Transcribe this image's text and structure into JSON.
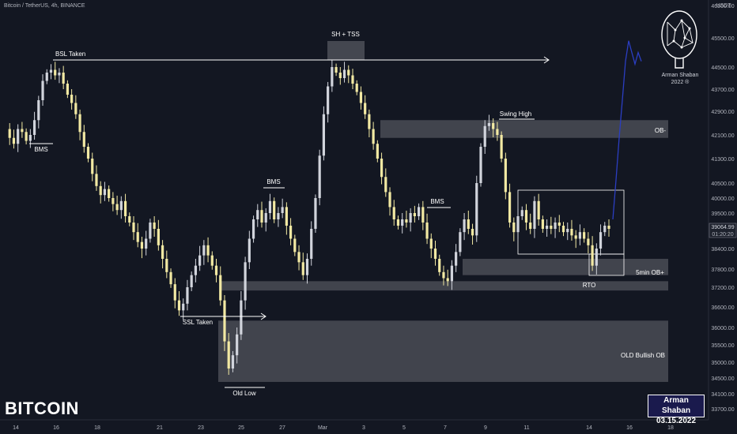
{
  "header": {
    "symbol_line": "Bitcoin / TetherUS, 4h, BINANCE",
    "quote_currency": "USDT"
  },
  "watermark_title": "BITCOIN",
  "signature": {
    "name": "Arman Shaban",
    "date": "03.15.2022"
  },
  "logo": {
    "caption_line1": "Arman Shaban",
    "caption_line2": "2022 ®"
  },
  "price_label": {
    "value": "39064.99",
    "countdown": "01:20:20"
  },
  "colors": {
    "background": "#131722",
    "bull_candle": "#d1d4dc",
    "bear_candle": "#f2e9a3",
    "projection": "#2b3ec2",
    "zone_fill": "#4a4c55",
    "annotation": "#ffffff"
  },
  "chart_data": {
    "type": "candlestick",
    "y_axis": {
      "ticks": [
        33700,
        34100,
        34500,
        35000,
        35500,
        36000,
        36600,
        37200,
        37800,
        38400,
        39000,
        39500,
        40000,
        40500,
        41300,
        42100,
        42900,
        43700,
        44500,
        45500,
        46500
      ],
      "tick_labels": [
        "33700.00",
        "34100.00",
        "34500.00",
        "35000.00",
        "35500.00",
        "36000.00",
        "36600.00",
        "37200.00",
        "37800.00",
        "38400.00",
        "39000.00",
        "39500.00",
        "40000.00",
        "40500.00",
        "41300.00",
        "42100.00",
        "42900.00",
        "43700.00",
        "44500.00",
        "45500.00",
        "46500.00"
      ]
    },
    "x_axis": {
      "tick_labels": [
        "14",
        "16",
        "18",
        "21",
        "23",
        "25",
        "27",
        "Mar",
        "3",
        "5",
        "7",
        "9",
        "11",
        "14",
        "16",
        "18"
      ]
    },
    "price_path": [
      42300,
      42000,
      41800,
      42300,
      42200,
      41900,
      42100,
      42600,
      43300,
      44000,
      44300,
      44400,
      44200,
      44300,
      43900,
      43500,
      43200,
      42800,
      42200,
      41700,
      41300,
      40800,
      40400,
      40100,
      40300,
      40000,
      39800,
      39600,
      39900,
      39400,
      39200,
      38900,
      38600,
      38400,
      38700,
      39200,
      39000,
      38500,
      38100,
      37700,
      37300,
      36800,
      36500,
      36700,
      37200,
      37600,
      37900,
      38200,
      38500,
      38200,
      37900,
      37600,
      36800,
      35600,
      34800,
      35200,
      35800,
      36800,
      38000,
      38700,
      39300,
      39600,
      39200,
      39500,
      39900,
      39300,
      39500,
      39700,
      39100,
      38700,
      38300,
      38000,
      37600,
      38100,
      39000,
      40000,
      41400,
      42800,
      43800,
      44500,
      44300,
      44100,
      44400,
      44200,
      43900,
      43600,
      43200,
      42800,
      42300,
      41800,
      41300,
      40700,
      40200,
      39700,
      39300,
      39100,
      39300,
      39200,
      39500,
      39400,
      39700,
      39200,
      38700,
      38400,
      38100,
      37700,
      37500,
      37400,
      37900,
      38300,
      38900,
      39300,
      39000,
      38800,
      40500,
      41700,
      42400,
      42500,
      42300,
      42100,
      41300,
      40200,
      39200,
      38900,
      39400,
      39600,
      39200,
      39000,
      39900,
      39300,
      39000,
      39100,
      39000,
      39200,
      39100,
      38900,
      39000,
      38800,
      38700,
      38900,
      38700,
      38500,
      37900,
      38400,
      38900,
      39100,
      39000
    ],
    "projection_path": [
      39300,
      40600,
      42000,
      43300,
      44700,
      45400,
      45000,
      44600,
      45000,
      44700
    ],
    "annotations": {
      "bsl": "BSL Taken",
      "bms": "BMS",
      "sh_tss": "SH + TSS",
      "swing_high": "Swing High",
      "ob_minus": "OB-",
      "ob_plus": "5min OB+",
      "rto": "RTO",
      "ssl": "SSL Taken",
      "old_low": "Old Low",
      "old_bullish_ob": "OLD Bullish OB"
    },
    "zones": [
      {
        "label": "OB-",
        "low": 42000,
        "high": 42600
      },
      {
        "label": "5min OB+",
        "low": 37600,
        "high": 38100
      },
      {
        "label": "RTO",
        "low": 37100,
        "high": 37400
      },
      {
        "label": "OLD Bullish OB",
        "low": 34400,
        "high": 36200
      }
    ]
  }
}
